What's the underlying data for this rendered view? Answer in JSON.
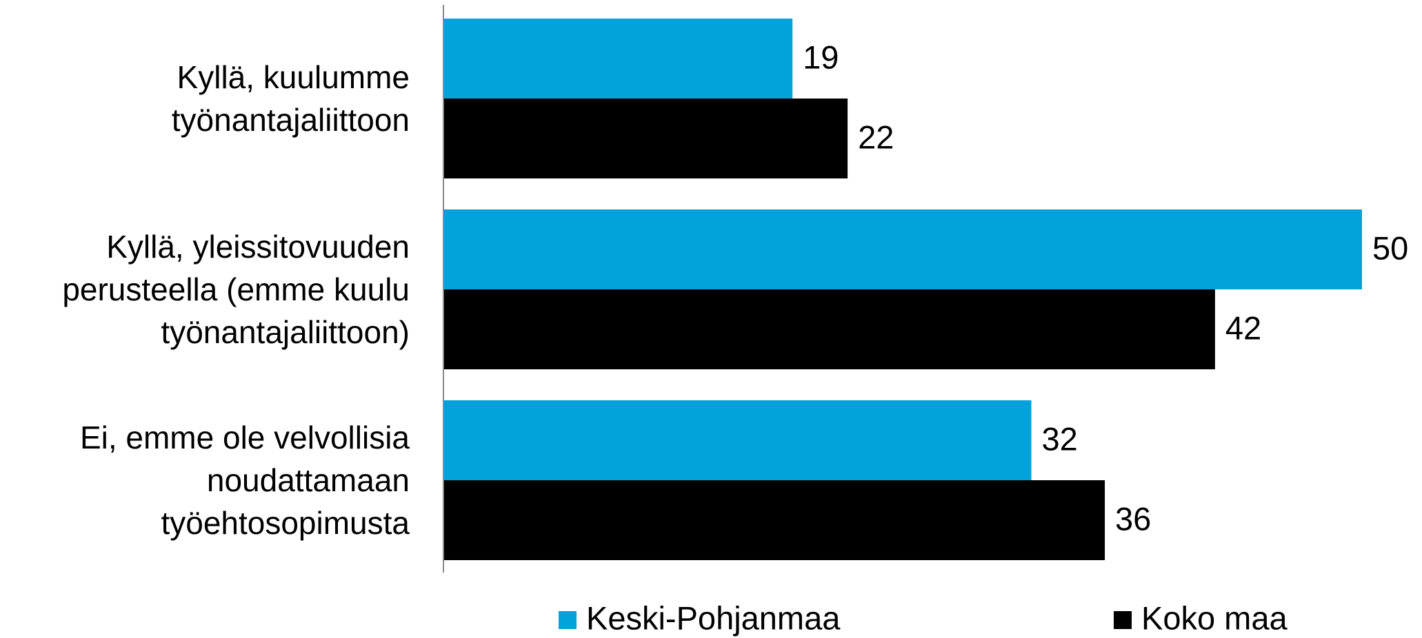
{
  "chart_data": {
    "type": "bar",
    "orientation": "horizontal",
    "categories": [
      "Kyllä, kuulumme työnantajaliittoon",
      "Kyllä, yleissitovuuden perusteella (emme kuulu työnantajaliittoon)",
      "Ei, emme ole velvollisia noudattamaan työehtosopimusta"
    ],
    "series": [
      {
        "name": "Keski-Pohjanmaa",
        "color": "#00a3d9",
        "values": [
          19,
          50,
          32
        ]
      },
      {
        "name": "Koko maa",
        "color": "#000000",
        "values": [
          22,
          42,
          36
        ]
      }
    ],
    "xlim": [
      0,
      50
    ],
    "legend": "bottom"
  }
}
